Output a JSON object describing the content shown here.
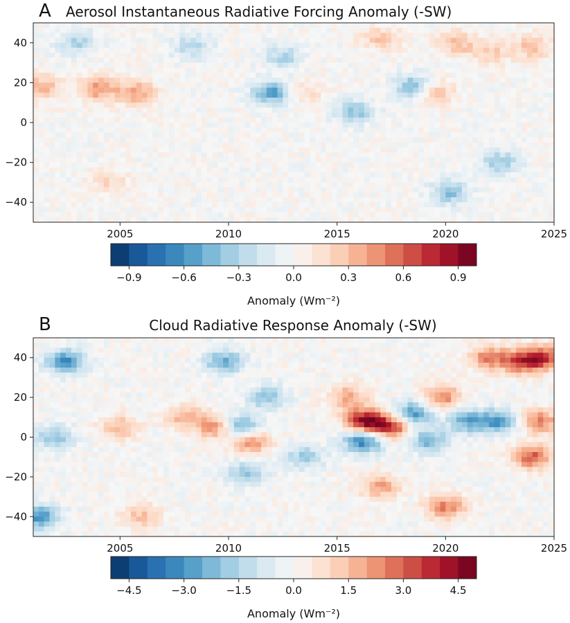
{
  "chart_data": [
    {
      "type": "heatmap",
      "panel_letter": "A",
      "title": "Aerosol Instantaneous Radiative Forcing Anomaly (-SW)",
      "x_ticks": [
        "2005",
        "2010",
        "2015",
        "2020",
        "2025"
      ],
      "x_tick_values": [
        2005,
        2010,
        2015,
        2020,
        2025
      ],
      "xlim": [
        2001,
        2025
      ],
      "y_ticks": [
        "40",
        "20",
        "0",
        "−20",
        "−40"
      ],
      "y_tick_values": [
        40,
        20,
        0,
        -20,
        -40
      ],
      "ylim": [
        -50,
        50
      ],
      "colormap": "RdBu_r",
      "color_min": -1.0,
      "color_max": 1.0,
      "colorbar_ticks": [
        "−0.9",
        "−0.6",
        "−0.3",
        "0.0",
        "0.3",
        "0.6",
        "0.9"
      ],
      "colorbar_tick_values": [
        -0.9,
        -0.6,
        -0.3,
        0.0,
        0.3,
        0.6,
        0.9
      ],
      "colorbar_label": "Anomaly (Wm⁻²)",
      "features": [
        {
          "year": 2001.3,
          "lat": 18,
          "value": 0.35
        },
        {
          "year": 2004.0,
          "lat": 17,
          "value": 0.45
        },
        {
          "year": 2005.8,
          "lat": 15,
          "value": 0.4
        },
        {
          "year": 2003.0,
          "lat": 40,
          "value": -0.3
        },
        {
          "year": 2004.5,
          "lat": -30,
          "value": 0.2
        },
        {
          "year": 2008.3,
          "lat": 38,
          "value": -0.3
        },
        {
          "year": 2012.0,
          "lat": 15,
          "value": -0.55
        },
        {
          "year": 2012.5,
          "lat": 33,
          "value": -0.3
        },
        {
          "year": 2013.5,
          "lat": 15,
          "value": 0.2
        },
        {
          "year": 2015.8,
          "lat": 5,
          "value": -0.4
        },
        {
          "year": 2017.0,
          "lat": 42,
          "value": 0.25
        },
        {
          "year": 2018.5,
          "lat": 18,
          "value": -0.45
        },
        {
          "year": 2019.5,
          "lat": 15,
          "value": 0.3
        },
        {
          "year": 2020.2,
          "lat": -35,
          "value": -0.4
        },
        {
          "year": 2020.5,
          "lat": 40,
          "value": 0.3
        },
        {
          "year": 2022.0,
          "lat": 35,
          "value": 0.25
        },
        {
          "year": 2022.5,
          "lat": -20,
          "value": -0.35
        },
        {
          "year": 2024.0,
          "lat": 38,
          "value": 0.3
        }
      ]
    },
    {
      "type": "heatmap",
      "panel_letter": "B",
      "title": "Cloud Radiative Response Anomaly (-SW)",
      "x_ticks": [
        "2005",
        "2010",
        "2015",
        "2020",
        "2025"
      ],
      "x_tick_values": [
        2005,
        2010,
        2015,
        2020,
        2025
      ],
      "xlim": [
        2001,
        2025
      ],
      "y_ticks": [
        "40",
        "20",
        "0",
        "−20",
        "−40"
      ],
      "y_tick_values": [
        40,
        20,
        0,
        -20,
        -40
      ],
      "ylim": [
        -50,
        50
      ],
      "colormap": "RdBu_r",
      "color_min": -5.0,
      "color_max": 5.0,
      "colorbar_ticks": [
        "−4.5",
        "−3.0",
        "−1.5",
        "0.0",
        "1.5",
        "3.0",
        "4.5"
      ],
      "colorbar_tick_values": [
        -4.5,
        -3.0,
        -1.5,
        0.0,
        1.5,
        3.0,
        4.5
      ],
      "colorbar_label": "Anomaly (Wm⁻²)",
      "features": [
        {
          "year": 2001.3,
          "lat": -40,
          "value": -3.0
        },
        {
          "year": 2002.5,
          "lat": 38,
          "value": -3.2
        },
        {
          "year": 2002.0,
          "lat": 0,
          "value": -2.0
        },
        {
          "year": 2005.0,
          "lat": 5,
          "value": 1.5
        },
        {
          "year": 2008.0,
          "lat": 10,
          "value": 1.8
        },
        {
          "year": 2009.8,
          "lat": 38,
          "value": -2.5
        },
        {
          "year": 2010.5,
          "lat": 5,
          "value": -3.0
        },
        {
          "year": 2009.5,
          "lat": 5,
          "value": 2.5
        },
        {
          "year": 2011.0,
          "lat": -2,
          "value": 2.5
        },
        {
          "year": 2011.8,
          "lat": 20,
          "value": -2.0
        },
        {
          "year": 2010.8,
          "lat": -18,
          "value": -2.0
        },
        {
          "year": 2013.5,
          "lat": -10,
          "value": -1.8
        },
        {
          "year": 2015.5,
          "lat": 20,
          "value": 2.0
        },
        {
          "year": 2016.3,
          "lat": 8,
          "value": 4.5
        },
        {
          "year": 2016.2,
          "lat": -2,
          "value": -3.5
        },
        {
          "year": 2017.5,
          "lat": 5,
          "value": 3.5
        },
        {
          "year": 2018.5,
          "lat": 12,
          "value": -3.0
        },
        {
          "year": 2019.2,
          "lat": -2,
          "value": -2.5
        },
        {
          "year": 2019.8,
          "lat": 20,
          "value": 2.5
        },
        {
          "year": 2020.0,
          "lat": -35,
          "value": 2.5
        },
        {
          "year": 2021.0,
          "lat": 8,
          "value": -2.5
        },
        {
          "year": 2022.0,
          "lat": 40,
          "value": 2.5
        },
        {
          "year": 2022.5,
          "lat": 8,
          "value": -2.8
        },
        {
          "year": 2023.5,
          "lat": 38,
          "value": 3.0
        },
        {
          "year": 2024.5,
          "lat": 40,
          "value": 3.2
        },
        {
          "year": 2024.0,
          "lat": -10,
          "value": 3.0
        },
        {
          "year": 2024.3,
          "lat": 8,
          "value": 2.5
        },
        {
          "year": 2017.0,
          "lat": -25,
          "value": 2.0
        },
        {
          "year": 2006.0,
          "lat": -40,
          "value": 1.5
        }
      ]
    }
  ]
}
